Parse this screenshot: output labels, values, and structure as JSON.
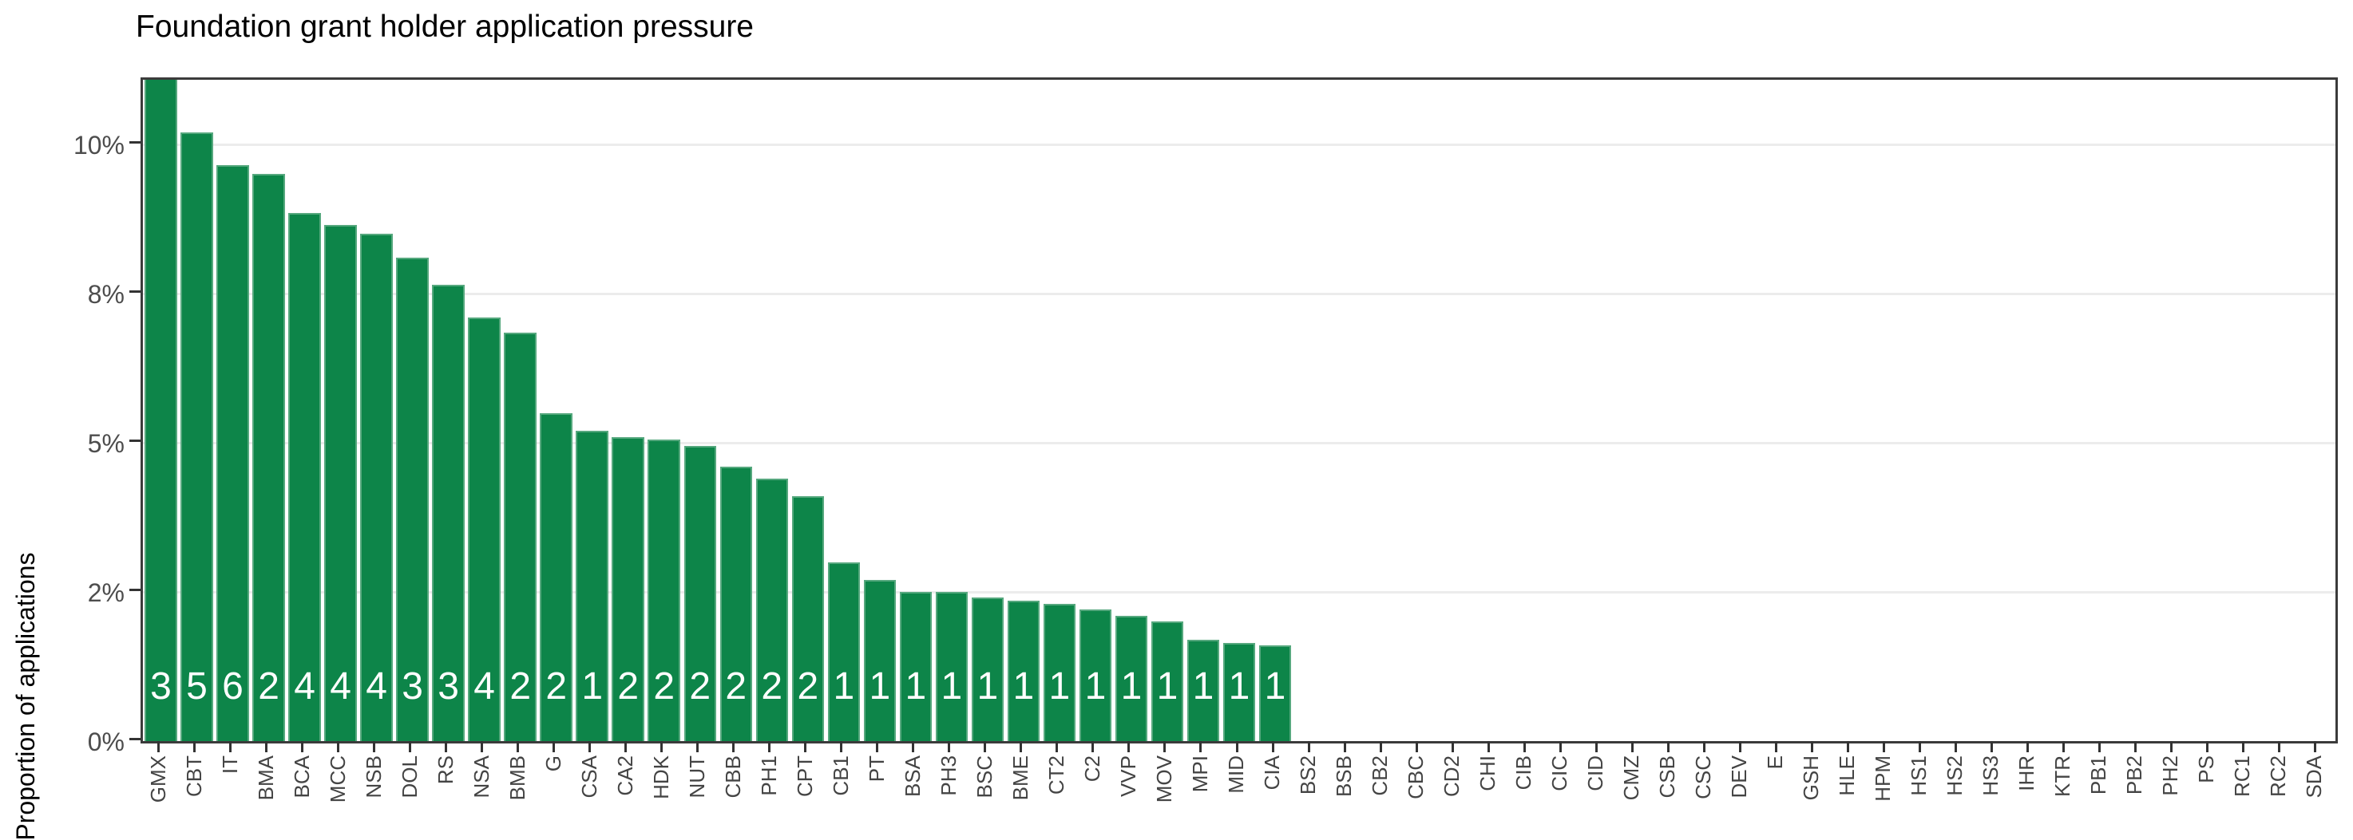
{
  "title": "Foundation grant holder application pressure",
  "chart_data": {
    "type": "bar",
    "title": "Foundation grant holder application pressure",
    "xlabel": "",
    "ylabel": "Proportion of applications",
    "legend": "none",
    "grid": "horizontal-major-only",
    "bar_color": "#0d8549",
    "bar_edge_color": "#56a87e",
    "count_label_color": "#ffffff",
    "ylim": [
      0,
      11.1
    ],
    "y_ticks": [
      {
        "value": 0,
        "label": "0%"
      },
      {
        "value": 2.5,
        "label": "2%"
      },
      {
        "value": 5,
        "label": "5%"
      },
      {
        "value": 7.5,
        "label": "8%"
      },
      {
        "value": 10,
        "label": "10%"
      }
    ],
    "note_first_bar_clipped_at_top": true,
    "categories": [
      "GMX",
      "CBT",
      "IT",
      "BMA",
      "BCA",
      "MCC",
      "NSB",
      "DOL",
      "RS",
      "NSA",
      "BMB",
      "G",
      "CSA",
      "CA2",
      "HDK",
      "NUT",
      "CBB",
      "PH1",
      "CPT",
      "CB1",
      "PT",
      "BSA",
      "PH3",
      "BSC",
      "BME",
      "CT2",
      "C2",
      "VVP",
      "MOV",
      "MPI",
      "MID",
      "CIA",
      "BS2",
      "BSB",
      "CB2",
      "CBC",
      "CD2",
      "CHI",
      "CIB",
      "CIC",
      "CID",
      "CMZ",
      "CSB",
      "CSC",
      "DEV",
      "E",
      "GSH",
      "HLE",
      "HPM",
      "HS1",
      "HS2",
      "HS3",
      "IHR",
      "KTR",
      "PB1",
      "PB2",
      "PH2",
      "PS",
      "RC1",
      "RC2",
      "SDA"
    ],
    "values_percent": [
      11.2,
      10.2,
      9.65,
      9.5,
      8.85,
      8.65,
      8.5,
      8.1,
      7.65,
      7.1,
      6.85,
      5.5,
      5.2,
      5.1,
      5.05,
      4.95,
      4.6,
      4.4,
      4.1,
      3.0,
      2.7,
      2.5,
      2.5,
      2.4,
      2.35,
      2.3,
      2.2,
      2.1,
      2.0,
      1.7,
      1.65,
      1.6,
      0,
      0,
      0,
      0,
      0,
      0,
      0,
      0,
      0,
      0,
      0,
      0,
      0,
      0,
      0,
      0,
      0,
      0,
      0,
      0,
      0,
      0,
      0,
      0,
      0,
      0,
      0,
      0,
      0
    ],
    "bar_count_labels": [
      "3",
      "5",
      "6",
      "2",
      "4",
      "4",
      "4",
      "3",
      "3",
      "4",
      "2",
      "2",
      "1",
      "2",
      "2",
      "2",
      "2",
      "2",
      "2",
      "1",
      "1",
      "1",
      "1",
      "1",
      "1",
      "1",
      "1",
      "1",
      "1",
      "1",
      "1",
      "1",
      "",
      "",
      "",
      "",
      "",
      "",
      "",
      "",
      "",
      "",
      "",
      "",
      "",
      "",
      "",
      "",
      "",
      "",
      "",
      "",
      "",
      "",
      "",
      "",
      "",
      "",
      "",
      "",
      ""
    ]
  },
  "layout_colors": {
    "panel_border": "#3b3b3b",
    "gridline": "#ececec",
    "tick": "#333333",
    "axis_text": "#4d4d4d",
    "title_text": "#000000"
  }
}
